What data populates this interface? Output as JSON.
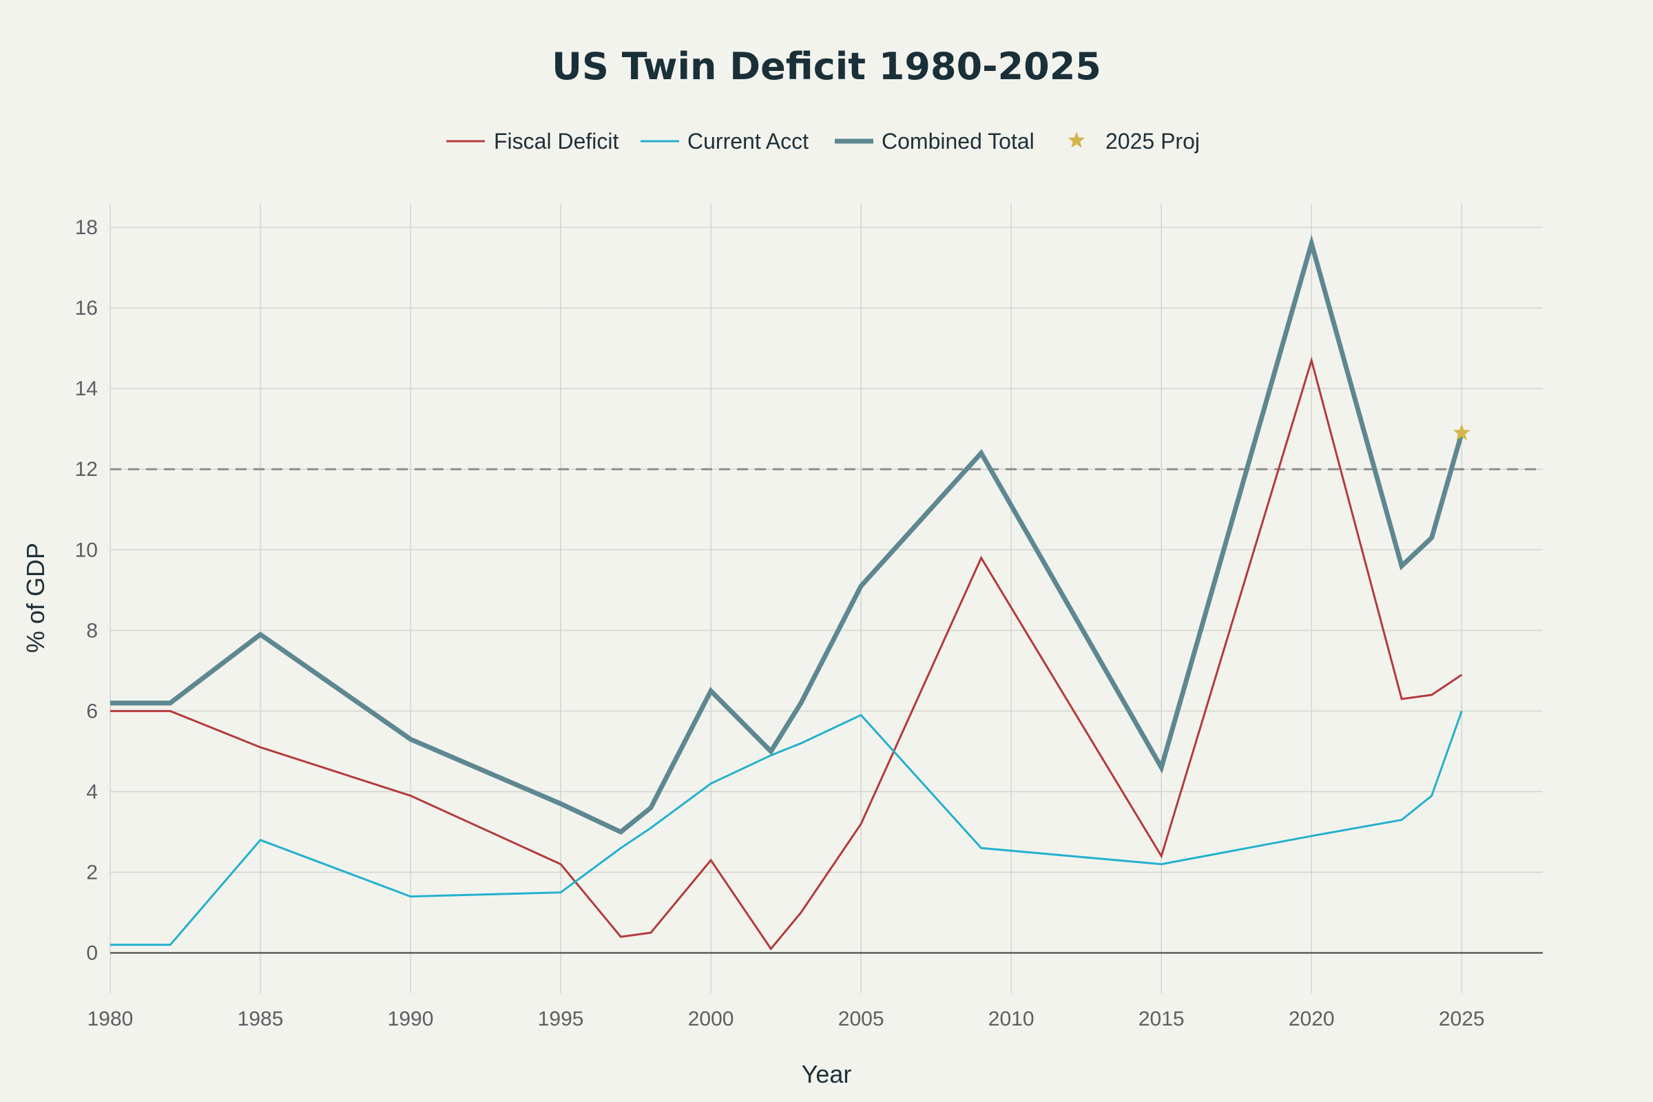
{
  "chart_data": {
    "type": "line",
    "title": "US Twin Deficit 1980-2025",
    "xlabel": "Year",
    "ylabel": "% of GDP",
    "xlim": [
      1980,
      2027.7
    ],
    "ylim": [
      -1,
      18.6
    ],
    "x_ticks": [
      1980,
      1985,
      1990,
      1995,
      2000,
      2005,
      2010,
      2015,
      2020,
      2025
    ],
    "y_ticks": [
      0,
      2,
      4,
      6,
      8,
      10,
      12,
      14,
      16,
      18
    ],
    "grid": true,
    "reference_line": {
      "y": 12,
      "style": "dashed"
    },
    "x": [
      1980,
      1982,
      1985,
      1990,
      1995,
      1997,
      1998,
      2000,
      2002,
      2003,
      2005,
      2009,
      2015,
      2020,
      2023,
      2024,
      2025
    ],
    "series": [
      {
        "name": "Fiscal Deficit",
        "color": "#b33b3b",
        "width": 3,
        "values": [
          6.0,
          6.0,
          5.1,
          3.9,
          2.2,
          0.4,
          0.5,
          2.3,
          0.1,
          1.0,
          3.2,
          9.8,
          2.4,
          14.7,
          6.3,
          6.4,
          6.9
        ]
      },
      {
        "name": "Current Acct",
        "color": "#23b1cc",
        "width": 3,
        "values": [
          0.2,
          0.2,
          2.8,
          1.4,
          1.5,
          2.6,
          3.1,
          4.2,
          4.9,
          5.2,
          5.9,
          2.6,
          2.2,
          2.9,
          3.3,
          3.9,
          6.0
        ]
      },
      {
        "name": "Combined Total",
        "color": "#5e8891",
        "width": 7,
        "values": [
          6.2,
          6.2,
          7.9,
          5.3,
          3.7,
          3.0,
          3.6,
          6.5,
          5.0,
          6.2,
          9.1,
          12.4,
          4.6,
          17.6,
          9.6,
          10.3,
          12.9
        ]
      }
    ],
    "markers": [
      {
        "name": "2025 Proj",
        "x": 2025,
        "y": 12.9,
        "symbol": "star",
        "color": "#d4b54a"
      }
    ],
    "legend": {
      "position": "top-center",
      "items": [
        "Fiscal Deficit",
        "Current Acct",
        "Combined Total",
        "2025 Proj"
      ]
    }
  }
}
